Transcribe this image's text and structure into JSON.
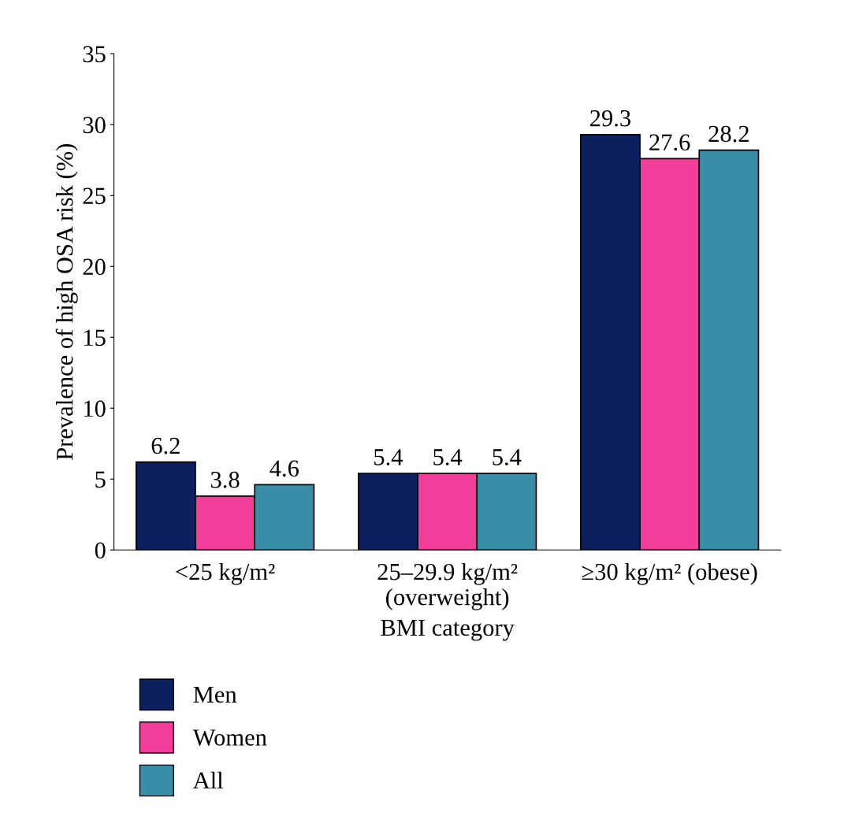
{
  "chart_data": {
    "type": "bar",
    "categories": [
      "<25 kg/m²",
      "25–29.9 kg/m²\n(overweight)",
      "≥30 kg/m² (obese)"
    ],
    "series": [
      {
        "name": "Men",
        "color": "#0c1f5e",
        "values": [
          6.2,
          5.4,
          29.3
        ]
      },
      {
        "name": "Women",
        "color": "#f23d9b",
        "values": [
          3.8,
          5.4,
          27.6
        ]
      },
      {
        "name": "All",
        "color": "#3a8da6",
        "values": [
          4.6,
          5.4,
          28.2
        ]
      }
    ],
    "xlabel": "BMI category",
    "ylabel": "Prevalence of high OSA risk (%)",
    "ylim": [
      0,
      35
    ],
    "yticks": [
      0,
      5,
      10,
      15,
      20,
      25,
      30,
      35
    ],
    "data_labels": true,
    "grid": false,
    "legend": "bottom left"
  }
}
